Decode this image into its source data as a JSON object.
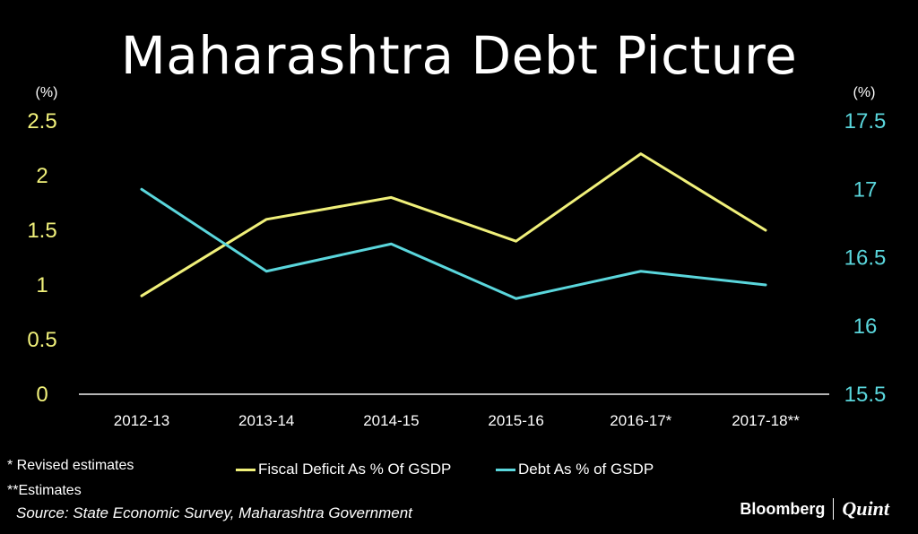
{
  "title": "Maharashtra Debt Picture",
  "chart_data": {
    "type": "line",
    "categories": [
      "2012-13",
      "2013-14",
      "2014-15",
      "2015-16",
      "2016-17*",
      "2017-18**"
    ],
    "series": [
      {
        "name": "Fiscal Deficit As % Of GSDP",
        "axis": "left",
        "color": "#f0f07a",
        "values": [
          0.9,
          1.6,
          1.8,
          1.4,
          2.2,
          1.5
        ]
      },
      {
        "name": "Debt As % of GSDP",
        "axis": "right",
        "color": "#5ad6dc",
        "values": [
          17.0,
          16.4,
          16.6,
          16.2,
          16.4,
          16.3
        ]
      }
    ],
    "left_axis": {
      "label": "(%)",
      "ylim": [
        0,
        2.5
      ],
      "ticks": [
        "0",
        "0.5",
        "1",
        "1.5",
        "2",
        "2.5"
      ],
      "color": "#f0f07a"
    },
    "right_axis": {
      "label": "(%)",
      "ylim": [
        15.5,
        17.5
      ],
      "ticks": [
        "15.5",
        "16",
        "16.5",
        "17",
        "17.5"
      ],
      "color": "#5ad6dc"
    },
    "grid": false,
    "legend": "bottom"
  },
  "footnotes": [
    "* Revised estimates",
    "**Estimates"
  ],
  "source": "Source: State Economic Survey, Maharashtra Government",
  "brand": {
    "primary": "Bloomberg",
    "secondary": "Quint"
  }
}
